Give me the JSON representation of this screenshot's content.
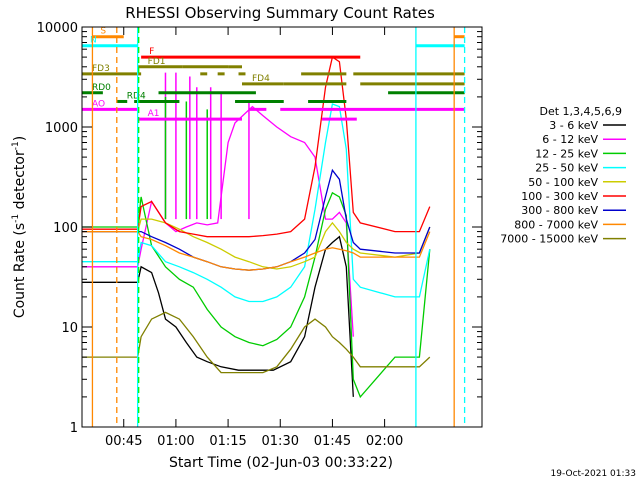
{
  "chart_data": {
    "type": "line",
    "title": "RHESSI Observing Summary Count Rates",
    "xlabel": "Start Time (02-Jun-03 00:33:22)",
    "ylabel_main": "Count Rate (s",
    "ylabel_sup1": "-1",
    "ylabel_mid": " detector",
    "ylabel_sup2": "-1",
    "ylabel_end": ")",
    "x_range_min": [
      0,
      115
    ],
    "y_scale": "log",
    "ylim": [
      1,
      10000
    ],
    "x_ticks": [
      {
        "t": 12,
        "label": "00:45"
      },
      {
        "t": 27,
        "label": "01:00"
      },
      {
        "t": 42,
        "label": "01:15"
      },
      {
        "t": 57,
        "label": "01:30"
      },
      {
        "t": 72,
        "label": "01:45"
      },
      {
        "t": 87,
        "label": "02:00"
      }
    ],
    "y_ticks": [
      {
        "v": 1,
        "label": "1"
      },
      {
        "v": 10,
        "label": "10"
      },
      {
        "v": 100,
        "label": "100"
      },
      {
        "v": 1000,
        "label": "1000"
      },
      {
        "v": 10000,
        "label": "10000"
      }
    ],
    "legend_header": "Det 1,3,4,5,6,9",
    "series": [
      {
        "name": "3 - 6 keV",
        "color": "#000000",
        "t": [
          0,
          16,
          17,
          20,
          22,
          24,
          27,
          30,
          33,
          36,
          40,
          45,
          50,
          55,
          60,
          64,
          67,
          70,
          72,
          74,
          76,
          78
        ],
        "values": [
          28,
          28,
          40,
          35,
          22,
          12,
          10,
          7,
          5,
          4.5,
          4,
          3.7,
          3.7,
          3.7,
          4.5,
          8,
          25,
          60,
          70,
          80,
          40,
          2
        ]
      },
      {
        "name": "6 - 12 keV",
        "color": "#ff00ff",
        "t": [
          0,
          16,
          17,
          20,
          24,
          27,
          30,
          33,
          36,
          39,
          42,
          44,
          49,
          52,
          56,
          60,
          64,
          67,
          70,
          72,
          74,
          76,
          78
        ],
        "values": [
          40,
          40,
          60,
          180,
          110,
          90,
          100,
          110,
          105,
          110,
          700,
          1100,
          1600,
          1300,
          1000,
          800,
          700,
          500,
          120,
          120,
          140,
          110,
          8
        ]
      },
      {
        "name": "12 - 25 keV",
        "color": "#00cc00",
        "t": [
          0,
          16,
          17,
          20,
          24,
          28,
          32,
          36,
          40,
          44,
          48,
          52,
          56,
          60,
          64,
          67,
          70,
          72,
          74,
          76,
          78,
          80,
          90,
          97,
          100
        ],
        "values": [
          100,
          100,
          200,
          65,
          40,
          30,
          25,
          15,
          10,
          8,
          7,
          6.5,
          7.5,
          10,
          20,
          50,
          150,
          220,
          200,
          130,
          3,
          2,
          5,
          5,
          60
        ]
      },
      {
        "name": "25 - 50 keV",
        "color": "#00ffff",
        "t": [
          0,
          16,
          17,
          20,
          24,
          28,
          32,
          36,
          40,
          44,
          48,
          52,
          56,
          60,
          64,
          67,
          70,
          72,
          74,
          76,
          78,
          80,
          90,
          97,
          100
        ],
        "values": [
          45,
          45,
          70,
          65,
          45,
          40,
          35,
          30,
          25,
          20,
          18,
          18,
          20,
          25,
          40,
          150,
          700,
          1700,
          1600,
          600,
          30,
          25,
          20,
          20,
          60
        ]
      },
      {
        "name": "50 - 100 keV",
        "color": "#cccc00",
        "t": [
          0,
          16,
          17,
          20,
          24,
          28,
          32,
          36,
          40,
          44,
          48,
          52,
          56,
          60,
          64,
          67,
          70,
          72,
          74,
          76,
          78,
          80,
          90,
          97,
          100
        ],
        "values": [
          90,
          90,
          120,
          120,
          110,
          95,
          80,
          70,
          60,
          50,
          45,
          40,
          38,
          40,
          45,
          50,
          90,
          110,
          90,
          70,
          60,
          55,
          50,
          55,
          100
        ]
      },
      {
        "name": "100 - 300 keV",
        "color": "#ff0000",
        "t": [
          0,
          16,
          17,
          20,
          24,
          28,
          32,
          36,
          40,
          44,
          48,
          52,
          56,
          60,
          64,
          67,
          70,
          72,
          74,
          76,
          78,
          80,
          90,
          97,
          100
        ],
        "values": [
          95,
          95,
          160,
          180,
          110,
          90,
          85,
          80,
          80,
          80,
          80,
          82,
          85,
          90,
          120,
          400,
          2500,
          5000,
          4500,
          1200,
          140,
          110,
          90,
          90,
          160
        ]
      },
      {
        "name": "300 - 800 keV",
        "color": "#0000cc",
        "t": [
          0,
          16,
          17,
          20,
          24,
          28,
          32,
          36,
          40,
          44,
          48,
          52,
          56,
          60,
          64,
          67,
          70,
          72,
          74,
          76,
          78,
          80,
          90,
          97,
          100
        ],
        "values": [
          90,
          90,
          90,
          80,
          70,
          60,
          50,
          45,
          40,
          38,
          37,
          38,
          40,
          45,
          55,
          75,
          200,
          370,
          300,
          120,
          70,
          60,
          55,
          55,
          100
        ]
      },
      {
        "name": "800 - 7000 keV",
        "color": "#ff8800",
        "t": [
          0,
          16,
          17,
          20,
          24,
          28,
          32,
          36,
          40,
          44,
          48,
          52,
          56,
          60,
          64,
          67,
          70,
          72,
          74,
          76,
          78,
          80,
          90,
          97,
          100
        ],
        "values": [
          90,
          90,
          80,
          75,
          65,
          55,
          50,
          45,
          40,
          38,
          37,
          38,
          40,
          45,
          50,
          55,
          60,
          62,
          60,
          58,
          55,
          50,
          50,
          50,
          90
        ]
      },
      {
        "name": "7000 - 15000 keV",
        "color": "#808000",
        "t": [
          0,
          16,
          17,
          20,
          24,
          28,
          32,
          36,
          40,
          44,
          48,
          52,
          56,
          60,
          64,
          67,
          70,
          72,
          74,
          76,
          78,
          80,
          90,
          97,
          100
        ],
        "values": [
          5,
          5,
          8,
          12,
          14,
          12,
          8,
          5,
          3.5,
          3.5,
          3.5,
          3.5,
          4,
          6,
          10,
          12,
          10,
          8,
          7,
          6,
          5,
          4,
          4,
          4,
          5
        ]
      }
    ],
    "flag_bars": [
      {
        "label": "S",
        "color": "#ff8800",
        "value": 8000,
        "segments": [
          [
            3,
            12
          ],
          [
            107,
            110
          ]
        ]
      },
      {
        "label": "N",
        "color": "#00ffff",
        "value": 6500,
        "segments": [
          [
            0,
            16
          ],
          [
            96,
            110
          ]
        ]
      },
      {
        "label": "F",
        "color": "#ff0000",
        "value": 5000,
        "segments": [
          [
            17,
            80
          ]
        ]
      },
      {
        "label": "FD1",
        "color": "#808000",
        "value": 4000,
        "segments": [
          [
            16,
            29
          ],
          [
            29,
            42
          ],
          [
            42,
            46
          ]
        ]
      },
      {
        "label": "FD3",
        "color": "#808000",
        "value": 3400,
        "segments": [
          [
            0,
            17
          ],
          [
            34,
            36
          ],
          [
            39,
            41
          ],
          [
            45,
            47
          ],
          [
            63,
            76
          ],
          [
            78,
            110
          ]
        ]
      },
      {
        "label": "FD4",
        "color": "#808000",
        "value": 2700,
        "segments": [
          [
            46,
            58
          ],
          [
            58,
            76
          ],
          [
            80,
            110
          ]
        ]
      },
      {
        "label": "RD0",
        "color": "#008000",
        "value": 2200,
        "segments": [
          [
            0,
            6
          ],
          [
            22,
            50
          ],
          [
            88,
            110
          ]
        ]
      },
      {
        "label": "RD4",
        "color": "#008000",
        "value": 1800,
        "segments": [
          [
            10,
            13
          ],
          [
            15,
            28
          ],
          [
            44,
            58
          ],
          [
            65,
            76
          ]
        ]
      },
      {
        "label": "AO",
        "color": "#ff00ff",
        "value": 1500,
        "segments": [
          [
            0,
            16
          ],
          [
            48,
            53
          ],
          [
            57,
            110
          ]
        ]
      },
      {
        "label": "A1",
        "color": "#ff00ff",
        "value": 1200,
        "segments": [
          [
            16,
            46
          ],
          [
            69,
            79
          ]
        ]
      }
    ],
    "vlines": [
      {
        "t": 3,
        "color": "#ff8800",
        "dashed": false
      },
      {
        "t": 10,
        "color": "#ff8800",
        "dashed": true
      },
      {
        "t": 16,
        "color": "#00ffff",
        "dashed": false
      },
      {
        "t": 16.3,
        "color": "#00ff00",
        "dashed": true
      },
      {
        "t": 96,
        "color": "#00ffff",
        "dashed": false
      },
      {
        "t": 107,
        "color": "#ff8800",
        "dashed": false
      },
      {
        "t": 110,
        "color": "#00ffff",
        "dashed": true
      }
    ],
    "spikes": [
      {
        "t": 24,
        "color": "#ff00ff",
        "to": 3500
      },
      {
        "t": 27,
        "color": "#ff00ff",
        "to": 3500
      },
      {
        "t": 31,
        "color": "#ff00ff",
        "to": 3200
      },
      {
        "t": 33,
        "color": "#ff00ff",
        "to": 2500
      },
      {
        "t": 37,
        "color": "#ff00ff",
        "to": 2500
      },
      {
        "t": 40,
        "color": "#ff00ff",
        "to": 2200
      },
      {
        "t": 24,
        "color": "#00cc00",
        "to": 2000
      },
      {
        "t": 30,
        "color": "#00cc00",
        "to": 1800
      },
      {
        "t": 36,
        "color": "#00cc00",
        "to": 1500
      },
      {
        "t": 48,
        "color": "#ff00ff",
        "to": 1800
      }
    ]
  },
  "footer_date": "19-Oct-2021 01:33"
}
